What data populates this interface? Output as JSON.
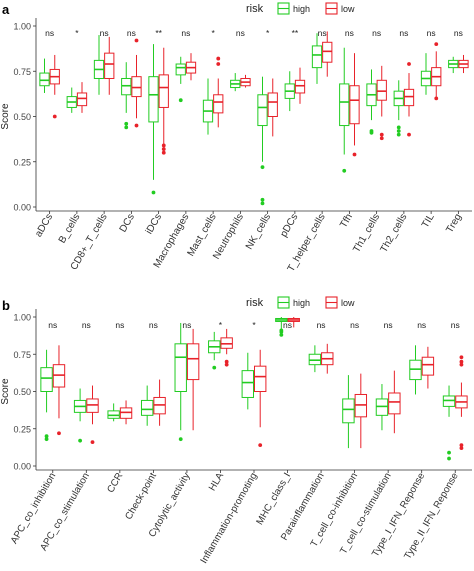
{
  "colors": {
    "high": "#22cc22",
    "low": "#e8222a",
    "axis": "#333333",
    "text": "#222222"
  },
  "chart_data": [
    {
      "type": "boxplot",
      "panel_label": "a",
      "ylabel": "Score",
      "ylim": [
        0,
        1.0
      ],
      "yticks": [
        "0.00",
        "0.25",
        "0.50",
        "0.75",
        "1.00"
      ],
      "ytick_values": [
        0,
        0.25,
        0.5,
        0.75,
        1.0
      ],
      "legend": {
        "title": "risk",
        "entries": [
          "high",
          "low"
        ],
        "position": "top"
      },
      "categories": [
        "aDCs",
        "B_cells",
        "CD8+_T_cells",
        "DCs",
        "iDCs",
        "Macrophages",
        "Mast_cells",
        "Neutrophils",
        "NK_cells",
        "pDCs",
        "T_helper_cells",
        "Tfh",
        "Th1_cells",
        "Th2_cells",
        "TIL",
        "Treg"
      ],
      "significance": [
        "ns",
        "*",
        "ns",
        "ns",
        "**",
        "ns",
        "*",
        "ns",
        "*",
        "**",
        "ns",
        "ns",
        "ns",
        "ns",
        "ns",
        "ns"
      ],
      "series": [
        {
          "name": "high",
          "boxes": [
            {
              "min": 0.63,
              "q1": 0.67,
              "median": 0.7,
              "q3": 0.74,
              "max": 0.82,
              "outliers": []
            },
            {
              "min": 0.52,
              "q1": 0.55,
              "median": 0.58,
              "q3": 0.61,
              "max": 0.66,
              "outliers": []
            },
            {
              "min": 0.62,
              "q1": 0.71,
              "median": 0.76,
              "q3": 0.81,
              "max": 0.95,
              "outliers": []
            },
            {
              "min": 0.52,
              "q1": 0.62,
              "median": 0.67,
              "q3": 0.71,
              "max": 0.8,
              "outliers": [
                0.44,
                0.46
              ]
            },
            {
              "min": 0.15,
              "q1": 0.47,
              "median": 0.62,
              "q3": 0.72,
              "max": 0.9,
              "outliers": [
                0.08
              ]
            },
            {
              "min": 0.68,
              "q1": 0.73,
              "median": 0.77,
              "q3": 0.79,
              "max": 0.83,
              "outliers": [
                0.59
              ]
            },
            {
              "min": 0.4,
              "q1": 0.47,
              "median": 0.53,
              "q3": 0.59,
              "max": 0.71,
              "outliers": []
            },
            {
              "min": 0.64,
              "q1": 0.66,
              "median": 0.68,
              "q3": 0.7,
              "max": 0.74,
              "outliers": []
            },
            {
              "min": 0.25,
              "q1": 0.45,
              "median": 0.55,
              "q3": 0.62,
              "max": 0.72,
              "outliers": [
                0.02,
                0.04,
                0.22
              ]
            },
            {
              "min": 0.53,
              "q1": 0.6,
              "median": 0.64,
              "q3": 0.68,
              "max": 0.75,
              "outliers": []
            },
            {
              "min": 0.68,
              "q1": 0.77,
              "median": 0.84,
              "q3": 0.89,
              "max": 0.96,
              "outliers": []
            },
            {
              "min": 0.29,
              "q1": 0.45,
              "median": 0.58,
              "q3": 0.68,
              "max": 0.88,
              "outliers": [
                0.2
              ]
            },
            {
              "min": 0.48,
              "q1": 0.56,
              "median": 0.62,
              "q3": 0.68,
              "max": 0.76,
              "outliers": [
                0.41,
                0.42
              ]
            },
            {
              "min": 0.48,
              "q1": 0.56,
              "median": 0.6,
              "q3": 0.64,
              "max": 0.7,
              "outliers": [
                0.4,
                0.42,
                0.44
              ]
            },
            {
              "min": 0.62,
              "q1": 0.67,
              "median": 0.71,
              "q3": 0.75,
              "max": 0.85,
              "outliers": []
            },
            {
              "min": 0.74,
              "q1": 0.77,
              "median": 0.79,
              "q3": 0.81,
              "max": 0.83,
              "outliers": []
            }
          ]
        },
        {
          "name": "low",
          "boxes": [
            {
              "min": 0.62,
              "q1": 0.68,
              "median": 0.72,
              "q3": 0.76,
              "max": 0.84,
              "outliers": [
                0.5
              ]
            },
            {
              "min": 0.52,
              "q1": 0.56,
              "median": 0.6,
              "q3": 0.63,
              "max": 0.69,
              "outliers": []
            },
            {
              "min": 0.62,
              "q1": 0.71,
              "median": 0.79,
              "q3": 0.85,
              "max": 0.94,
              "outliers": []
            },
            {
              "min": 0.49,
              "q1": 0.61,
              "median": 0.66,
              "q3": 0.72,
              "max": 0.84,
              "outliers": [
                0.92,
                0.45
              ]
            },
            {
              "min": 0.35,
              "q1": 0.55,
              "median": 0.66,
              "q3": 0.73,
              "max": 0.88,
              "outliers": [
                0.3,
                0.32,
                0.34
              ]
            },
            {
              "min": 0.7,
              "q1": 0.74,
              "median": 0.77,
              "q3": 0.8,
              "max": 0.85,
              "outliers": []
            },
            {
              "min": 0.44,
              "q1": 0.52,
              "median": 0.58,
              "q3": 0.62,
              "max": 0.71,
              "outliers": [
                0.79,
                0.82
              ]
            },
            {
              "min": 0.66,
              "q1": 0.67,
              "median": 0.69,
              "q3": 0.71,
              "max": 0.73,
              "outliers": []
            },
            {
              "min": 0.39,
              "q1": 0.5,
              "median": 0.58,
              "q3": 0.63,
              "max": 0.71,
              "outliers": []
            },
            {
              "min": 0.57,
              "q1": 0.63,
              "median": 0.67,
              "q3": 0.7,
              "max": 0.77,
              "outliers": []
            },
            {
              "min": 0.72,
              "q1": 0.8,
              "median": 0.86,
              "q3": 0.91,
              "max": 0.97,
              "outliers": []
            },
            {
              "min": 0.34,
              "q1": 0.46,
              "median": 0.59,
              "q3": 0.67,
              "max": 0.85,
              "outliers": [
                0.29
              ]
            },
            {
              "min": 0.5,
              "q1": 0.59,
              "median": 0.64,
              "q3": 0.7,
              "max": 0.78,
              "outliers": [
                0.38,
                0.4
              ]
            },
            {
              "min": 0.5,
              "q1": 0.56,
              "median": 0.61,
              "q3": 0.65,
              "max": 0.74,
              "outliers": [
                0.4,
                0.79
              ]
            },
            {
              "min": 0.61,
              "q1": 0.67,
              "median": 0.72,
              "q3": 0.77,
              "max": 0.86,
              "outliers": [
                0.9,
                0.6
              ]
            },
            {
              "min": 0.74,
              "q1": 0.77,
              "median": 0.79,
              "q3": 0.81,
              "max": 0.84,
              "outliers": []
            }
          ]
        }
      ]
    },
    {
      "type": "boxplot",
      "panel_label": "b",
      "ylabel": "Score",
      "ylim": [
        0,
        1.0
      ],
      "yticks": [
        "0.00",
        "0.25",
        "0.50",
        "0.75",
        "1.00"
      ],
      "ytick_values": [
        0,
        0.25,
        0.5,
        0.75,
        1.0
      ],
      "legend": {
        "title": "risk",
        "entries": [
          "high",
          "low"
        ],
        "position": "top"
      },
      "categories": [
        "APC_co_inhibition",
        "APC_co_stimulation",
        "CCR",
        "Check-point",
        "Cytolytic_activity",
        "HLA",
        "Inflammation-promoting",
        "MHC_class_I",
        "Parainflammation",
        "T_cell_co-inhibition",
        "T_cell_co-stimulation",
        "Type_I_IFN_Reponse",
        "Type_II_IFN_Reponse"
      ],
      "significance": [
        "ns",
        "ns",
        "ns",
        "ns",
        "ns",
        "*",
        "*",
        "ns",
        "ns",
        "ns",
        "ns",
        "ns",
        "ns"
      ],
      "series": [
        {
          "name": "high",
          "boxes": [
            {
              "min": 0.36,
              "q1": 0.5,
              "median": 0.59,
              "q3": 0.66,
              "max": 0.78,
              "outliers": [
                0.18,
                0.2
              ]
            },
            {
              "min": 0.3,
              "q1": 0.36,
              "median": 0.4,
              "q3": 0.44,
              "max": 0.52,
              "outliers": [
                0.17
              ]
            },
            {
              "min": 0.3,
              "q1": 0.32,
              "median": 0.34,
              "q3": 0.37,
              "max": 0.42,
              "outliers": []
            },
            {
              "min": 0.27,
              "q1": 0.34,
              "median": 0.38,
              "q3": 0.44,
              "max": 0.54,
              "outliers": []
            },
            {
              "min": 0.24,
              "q1": 0.5,
              "median": 0.73,
              "q3": 0.82,
              "max": 0.96,
              "outliers": [
                0.18
              ]
            },
            {
              "min": 0.71,
              "q1": 0.76,
              "median": 0.8,
              "q3": 0.84,
              "max": 0.9,
              "outliers": [
                0.66
              ]
            },
            {
              "min": 0.38,
              "q1": 0.46,
              "median": 0.56,
              "q3": 0.64,
              "max": 0.76,
              "outliers": []
            },
            {
              "min": 0.92,
              "q1": 0.97,
              "median": 0.98,
              "q3": 0.99,
              "max": 1.0,
              "outliers": [
                0.88,
                0.9,
                0.91
              ]
            },
            {
              "min": 0.63,
              "q1": 0.68,
              "median": 0.71,
              "q3": 0.75,
              "max": 0.81,
              "outliers": []
            },
            {
              "min": 0.12,
              "q1": 0.29,
              "median": 0.38,
              "q3": 0.45,
              "max": 0.61,
              "outliers": []
            },
            {
              "min": 0.24,
              "q1": 0.34,
              "median": 0.4,
              "q3": 0.45,
              "max": 0.55,
              "outliers": []
            },
            {
              "min": 0.48,
              "q1": 0.58,
              "median": 0.65,
              "q3": 0.71,
              "max": 0.81,
              "outliers": []
            },
            {
              "min": 0.33,
              "q1": 0.4,
              "median": 0.44,
              "q3": 0.47,
              "max": 0.54,
              "outliers": [
                0.05,
                0.09
              ]
            }
          ]
        },
        {
          "name": "low",
          "boxes": [
            {
              "min": 0.32,
              "q1": 0.53,
              "median": 0.61,
              "q3": 0.68,
              "max": 0.81,
              "outliers": [
                0.22
              ]
            },
            {
              "min": 0.28,
              "q1": 0.36,
              "median": 0.41,
              "q3": 0.45,
              "max": 0.54,
              "outliers": [
                0.16
              ]
            },
            {
              "min": 0.28,
              "q1": 0.32,
              "median": 0.36,
              "q3": 0.39,
              "max": 0.44,
              "outliers": []
            },
            {
              "min": 0.27,
              "q1": 0.35,
              "median": 0.41,
              "q3": 0.46,
              "max": 0.58,
              "outliers": []
            },
            {
              "min": 0.24,
              "q1": 0.58,
              "median": 0.72,
              "q3": 0.82,
              "max": 0.92,
              "outliers": []
            },
            {
              "min": 0.75,
              "q1": 0.79,
              "median": 0.82,
              "q3": 0.86,
              "max": 0.92,
              "outliers": [
                0.68,
                0.7
              ]
            },
            {
              "min": 0.26,
              "q1": 0.5,
              "median": 0.6,
              "q3": 0.67,
              "max": 0.78,
              "outliers": [
                0.14
              ]
            },
            {
              "min": 0.93,
              "q1": 0.97,
              "median": 0.98,
              "q3": 0.99,
              "max": 1.0,
              "outliers": []
            },
            {
              "min": 0.62,
              "q1": 0.68,
              "median": 0.72,
              "q3": 0.76,
              "max": 0.82,
              "outliers": []
            },
            {
              "min": 0.12,
              "q1": 0.33,
              "median": 0.41,
              "q3": 0.48,
              "max": 0.62,
              "outliers": []
            },
            {
              "min": 0.22,
              "q1": 0.35,
              "median": 0.43,
              "q3": 0.49,
              "max": 0.64,
              "outliers": []
            },
            {
              "min": 0.52,
              "q1": 0.61,
              "median": 0.68,
              "q3": 0.73,
              "max": 0.8,
              "outliers": []
            },
            {
              "min": 0.33,
              "q1": 0.39,
              "median": 0.43,
              "q3": 0.47,
              "max": 0.56,
              "outliers": [
                0.12,
                0.14,
                0.68,
                0.7,
                0.73
              ]
            }
          ]
        }
      ]
    }
  ]
}
